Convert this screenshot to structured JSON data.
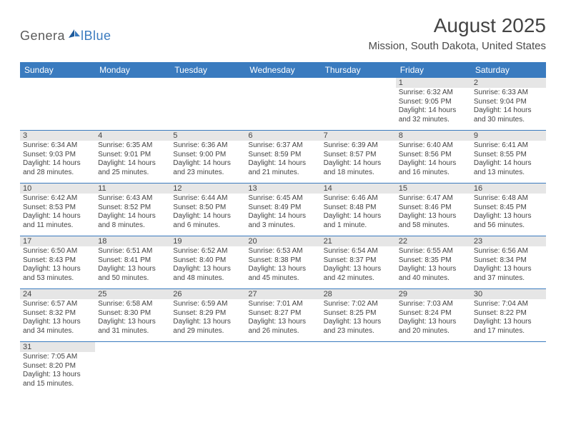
{
  "logo": {
    "part1": "Genera",
    "part2": "lBlue"
  },
  "title": "August 2025",
  "location": "Mission, South Dakota, United States",
  "header_bg": "#3a7bbf",
  "header_fg": "#ffffff",
  "daynum_bg": "#e6e6e6",
  "cell_border": "#3a7bbf",
  "text_color": "#444444",
  "days": [
    "Sunday",
    "Monday",
    "Tuesday",
    "Wednesday",
    "Thursday",
    "Friday",
    "Saturday"
  ],
  "weeks": [
    [
      null,
      null,
      null,
      null,
      null,
      {
        "n": "1",
        "sr": "6:32 AM",
        "ss": "9:05 PM",
        "dl": "14 hours and 32 minutes."
      },
      {
        "n": "2",
        "sr": "6:33 AM",
        "ss": "9:04 PM",
        "dl": "14 hours and 30 minutes."
      }
    ],
    [
      {
        "n": "3",
        "sr": "6:34 AM",
        "ss": "9:03 PM",
        "dl": "14 hours and 28 minutes."
      },
      {
        "n": "4",
        "sr": "6:35 AM",
        "ss": "9:01 PM",
        "dl": "14 hours and 25 minutes."
      },
      {
        "n": "5",
        "sr": "6:36 AM",
        "ss": "9:00 PM",
        "dl": "14 hours and 23 minutes."
      },
      {
        "n": "6",
        "sr": "6:37 AM",
        "ss": "8:59 PM",
        "dl": "14 hours and 21 minutes."
      },
      {
        "n": "7",
        "sr": "6:39 AM",
        "ss": "8:57 PM",
        "dl": "14 hours and 18 minutes."
      },
      {
        "n": "8",
        "sr": "6:40 AM",
        "ss": "8:56 PM",
        "dl": "14 hours and 16 minutes."
      },
      {
        "n": "9",
        "sr": "6:41 AM",
        "ss": "8:55 PM",
        "dl": "14 hours and 13 minutes."
      }
    ],
    [
      {
        "n": "10",
        "sr": "6:42 AM",
        "ss": "8:53 PM",
        "dl": "14 hours and 11 minutes."
      },
      {
        "n": "11",
        "sr": "6:43 AM",
        "ss": "8:52 PM",
        "dl": "14 hours and 8 minutes."
      },
      {
        "n": "12",
        "sr": "6:44 AM",
        "ss": "8:50 PM",
        "dl": "14 hours and 6 minutes."
      },
      {
        "n": "13",
        "sr": "6:45 AM",
        "ss": "8:49 PM",
        "dl": "14 hours and 3 minutes."
      },
      {
        "n": "14",
        "sr": "6:46 AM",
        "ss": "8:48 PM",
        "dl": "14 hours and 1 minute."
      },
      {
        "n": "15",
        "sr": "6:47 AM",
        "ss": "8:46 PM",
        "dl": "13 hours and 58 minutes."
      },
      {
        "n": "16",
        "sr": "6:48 AM",
        "ss": "8:45 PM",
        "dl": "13 hours and 56 minutes."
      }
    ],
    [
      {
        "n": "17",
        "sr": "6:50 AM",
        "ss": "8:43 PM",
        "dl": "13 hours and 53 minutes."
      },
      {
        "n": "18",
        "sr": "6:51 AM",
        "ss": "8:41 PM",
        "dl": "13 hours and 50 minutes."
      },
      {
        "n": "19",
        "sr": "6:52 AM",
        "ss": "8:40 PM",
        "dl": "13 hours and 48 minutes."
      },
      {
        "n": "20",
        "sr": "6:53 AM",
        "ss": "8:38 PM",
        "dl": "13 hours and 45 minutes."
      },
      {
        "n": "21",
        "sr": "6:54 AM",
        "ss": "8:37 PM",
        "dl": "13 hours and 42 minutes."
      },
      {
        "n": "22",
        "sr": "6:55 AM",
        "ss": "8:35 PM",
        "dl": "13 hours and 40 minutes."
      },
      {
        "n": "23",
        "sr": "6:56 AM",
        "ss": "8:34 PM",
        "dl": "13 hours and 37 minutes."
      }
    ],
    [
      {
        "n": "24",
        "sr": "6:57 AM",
        "ss": "8:32 PM",
        "dl": "13 hours and 34 minutes."
      },
      {
        "n": "25",
        "sr": "6:58 AM",
        "ss": "8:30 PM",
        "dl": "13 hours and 31 minutes."
      },
      {
        "n": "26",
        "sr": "6:59 AM",
        "ss": "8:29 PM",
        "dl": "13 hours and 29 minutes."
      },
      {
        "n": "27",
        "sr": "7:01 AM",
        "ss": "8:27 PM",
        "dl": "13 hours and 26 minutes."
      },
      {
        "n": "28",
        "sr": "7:02 AM",
        "ss": "8:25 PM",
        "dl": "13 hours and 23 minutes."
      },
      {
        "n": "29",
        "sr": "7:03 AM",
        "ss": "8:24 PM",
        "dl": "13 hours and 20 minutes."
      },
      {
        "n": "30",
        "sr": "7:04 AM",
        "ss": "8:22 PM",
        "dl": "13 hours and 17 minutes."
      }
    ],
    [
      {
        "n": "31",
        "sr": "7:05 AM",
        "ss": "8:20 PM",
        "dl": "13 hours and 15 minutes."
      },
      null,
      null,
      null,
      null,
      null,
      null
    ]
  ],
  "labels": {
    "sunrise": "Sunrise:",
    "sunset": "Sunset:",
    "daylight": "Daylight:"
  }
}
